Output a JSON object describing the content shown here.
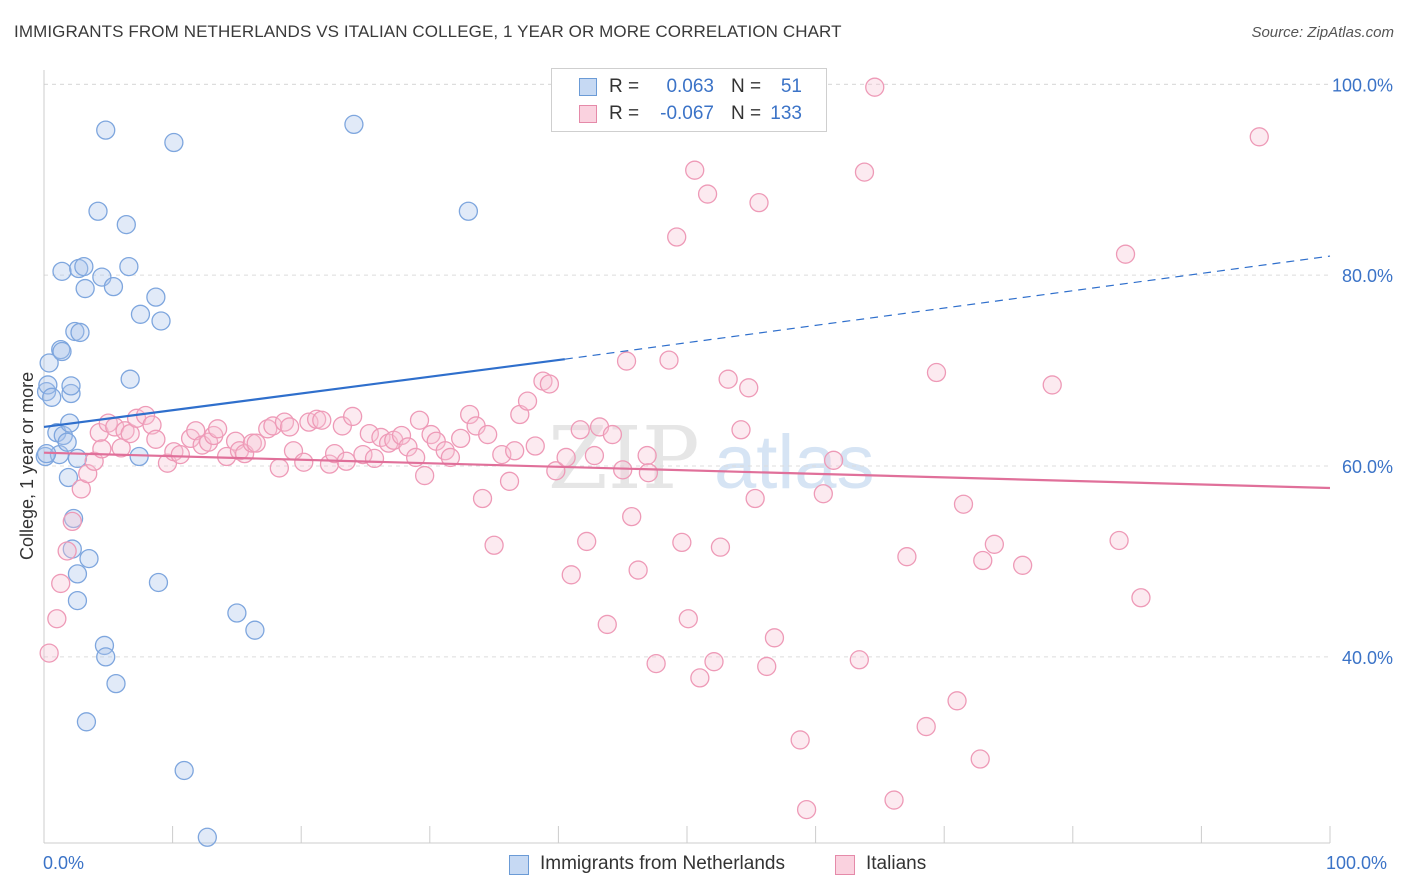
{
  "title": "IMMIGRANTS FROM NETHERLANDS VS ITALIAN COLLEGE, 1 YEAR OR MORE CORRELATION CHART",
  "source": "Source: ZipAtlas.com",
  "watermark": {
    "zip": "ZIP",
    "atlas": "atlas"
  },
  "legend_top": [
    {
      "r_label": "R =",
      "r_value": "0.063",
      "n_label": "N =",
      "n_value": "51",
      "color": "#a9c4ea",
      "border": "#6b9bd6"
    },
    {
      "r_label": "R =",
      "r_value": "-0.067",
      "n_label": "N =",
      "n_value": "133",
      "color": "#f7c3d4",
      "border": "#e58aa9"
    }
  ],
  "legend_bottom": [
    {
      "label": "Immigrants from Netherlands",
      "color": "#c6d9f3",
      "border": "#6b9bd6"
    },
    {
      "label": "Italians",
      "color": "#fad2df",
      "border": "#e58aa9"
    }
  ],
  "chart_data": {
    "type": "scatter",
    "title": "IMMIGRANTS FROM NETHERLANDS VS ITALIAN COLLEGE, 1 YEAR OR MORE CORRELATION CHART",
    "xlabel": "",
    "ylabel": "College, 1 year or more",
    "xlim": [
      0,
      100
    ],
    "ylim": [
      20.5,
      101.5
    ],
    "x_tick_labels": [
      "0.0%",
      "100.0%"
    ],
    "y_ticks": [
      40,
      60,
      80,
      100
    ],
    "y_tick_labels": [
      "40.0%",
      "60.0%",
      "80.0%",
      "100.0%"
    ],
    "grid": "horizontal dashed",
    "legend_position": "top-center",
    "series": [
      {
        "name": "Immigrants from Netherlands",
        "color": "#7ea6de",
        "fill": "rgba(169,196,234,0.35)",
        "trend_color": "#2f6fcc",
        "trend": {
          "x0": 0,
          "y0": 64.1,
          "x1": 40.5,
          "y1": 71.2,
          "dashed_to_x": 100,
          "dashed_to_y": 82.0
        },
        "points": [
          [
            0.1,
            61.0
          ],
          [
            0.2,
            67.8
          ],
          [
            0.3,
            68.5
          ],
          [
            0.4,
            70.8
          ],
          [
            0.6,
            67.2
          ],
          [
            1.0,
            63.5
          ],
          [
            1.2,
            61.2
          ],
          [
            1.3,
            72.2
          ],
          [
            1.4,
            72.0
          ],
          [
            1.5,
            63.2
          ],
          [
            1.4,
            80.4
          ],
          [
            1.8,
            62.5
          ],
          [
            1.9,
            58.8
          ],
          [
            2.0,
            64.5
          ],
          [
            2.1,
            67.6
          ],
          [
            2.1,
            68.4
          ],
          [
            2.2,
            51.3
          ],
          [
            2.3,
            54.5
          ],
          [
            2.6,
            60.8
          ],
          [
            2.4,
            74.1
          ],
          [
            2.8,
            74.0
          ],
          [
            2.7,
            80.7
          ],
          [
            2.6,
            48.7
          ],
          [
            2.6,
            45.9
          ],
          [
            3.1,
            80.9
          ],
          [
            3.2,
            78.6
          ],
          [
            3.3,
            33.2
          ],
          [
            3.5,
            50.3
          ],
          [
            4.2,
            86.7
          ],
          [
            4.5,
            79.8
          ],
          [
            4.7,
            41.2
          ],
          [
            4.8,
            40.0
          ],
          [
            4.8,
            95.2
          ],
          [
            5.4,
            78.8
          ],
          [
            5.6,
            37.2
          ],
          [
            6.4,
            85.3
          ],
          [
            6.6,
            80.9
          ],
          [
            6.7,
            69.1
          ],
          [
            7.4,
            61.0
          ],
          [
            7.5,
            75.9
          ],
          [
            8.7,
            77.7
          ],
          [
            8.9,
            47.8
          ],
          [
            9.1,
            75.2
          ],
          [
            10.1,
            93.9
          ],
          [
            10.9,
            28.1
          ],
          [
            12.7,
            21.1
          ],
          [
            15.0,
            44.6
          ],
          [
            16.4,
            42.8
          ],
          [
            24.1,
            95.8
          ],
          [
            33.0,
            86.7
          ],
          [
            0.2,
            61.3
          ]
        ]
      },
      {
        "name": "Italians",
        "color": "#ee9ab7",
        "fill": "rgba(247,195,212,0.35)",
        "trend_color": "#e0709a",
        "trend": {
          "x0": 0,
          "y0": 61.4,
          "x1": 100,
          "y1": 57.7
        },
        "points": [
          [
            0.4,
            40.4
          ],
          [
            1.0,
            44.0
          ],
          [
            1.3,
            47.7
          ],
          [
            1.8,
            51.1
          ],
          [
            2.2,
            54.2
          ],
          [
            2.9,
            57.6
          ],
          [
            3.4,
            59.2
          ],
          [
            3.9,
            60.5
          ],
          [
            4.3,
            63.5
          ],
          [
            4.5,
            61.8
          ],
          [
            5.0,
            64.5
          ],
          [
            5.5,
            64.1
          ],
          [
            6.0,
            61.9
          ],
          [
            6.3,
            63.7
          ],
          [
            6.7,
            63.4
          ],
          [
            7.2,
            65.0
          ],
          [
            7.9,
            65.3
          ],
          [
            8.4,
            64.3
          ],
          [
            8.7,
            62.8
          ],
          [
            9.6,
            60.3
          ],
          [
            10.1,
            61.5
          ],
          [
            10.6,
            61.2
          ],
          [
            11.4,
            62.9
          ],
          [
            11.8,
            63.7
          ],
          [
            12.3,
            62.2
          ],
          [
            12.8,
            62.5
          ],
          [
            13.2,
            63.2
          ],
          [
            13.5,
            63.9
          ],
          [
            14.2,
            61.0
          ],
          [
            14.9,
            62.6
          ],
          [
            15.2,
            61.6
          ],
          [
            15.6,
            61.3
          ],
          [
            16.2,
            62.4
          ],
          [
            16.5,
            62.4
          ],
          [
            17.4,
            63.9
          ],
          [
            17.8,
            64.2
          ],
          [
            18.3,
            59.8
          ],
          [
            18.7,
            64.6
          ],
          [
            19.1,
            64.1
          ],
          [
            19.4,
            61.6
          ],
          [
            20.2,
            60.4
          ],
          [
            20.6,
            64.6
          ],
          [
            21.2,
            64.9
          ],
          [
            21.6,
            64.8
          ],
          [
            22.2,
            60.2
          ],
          [
            22.6,
            61.3
          ],
          [
            23.2,
            64.2
          ],
          [
            23.5,
            60.5
          ],
          [
            24.0,
            65.2
          ],
          [
            24.8,
            61.2
          ],
          [
            25.3,
            63.4
          ],
          [
            25.7,
            60.8
          ],
          [
            26.2,
            63.0
          ],
          [
            26.8,
            62.4
          ],
          [
            27.2,
            62.7
          ],
          [
            27.8,
            63.2
          ],
          [
            28.3,
            62.0
          ],
          [
            28.9,
            60.9
          ],
          [
            29.2,
            64.8
          ],
          [
            29.6,
            59.0
          ],
          [
            30.1,
            63.3
          ],
          [
            30.5,
            62.6
          ],
          [
            31.2,
            61.6
          ],
          [
            31.6,
            60.9
          ],
          [
            32.4,
            62.9
          ],
          [
            33.1,
            65.4
          ],
          [
            33.6,
            64.2
          ],
          [
            34.1,
            56.6
          ],
          [
            34.5,
            63.3
          ],
          [
            35.0,
            51.7
          ],
          [
            35.6,
            61.2
          ],
          [
            36.2,
            58.4
          ],
          [
            36.6,
            61.6
          ],
          [
            37.0,
            65.4
          ],
          [
            37.6,
            66.8
          ],
          [
            38.2,
            62.1
          ],
          [
            38.8,
            68.9
          ],
          [
            39.3,
            68.6
          ],
          [
            39.8,
            59.5
          ],
          [
            40.6,
            60.9
          ],
          [
            41.0,
            48.6
          ],
          [
            41.7,
            63.8
          ],
          [
            42.2,
            52.1
          ],
          [
            42.8,
            61.1
          ],
          [
            43.2,
            64.1
          ],
          [
            43.8,
            43.4
          ],
          [
            44.2,
            63.3
          ],
          [
            45.0,
            59.6
          ],
          [
            45.3,
            71.0
          ],
          [
            45.7,
            54.7
          ],
          [
            46.2,
            49.1
          ],
          [
            46.9,
            61.1
          ],
          [
            47.0,
            59.3
          ],
          [
            47.6,
            39.3
          ],
          [
            48.6,
            71.1
          ],
          [
            49.2,
            84.0
          ],
          [
            49.6,
            52.0
          ],
          [
            50.1,
            44.0
          ],
          [
            50.6,
            91.0
          ],
          [
            51.0,
            37.8
          ],
          [
            51.6,
            88.5
          ],
          [
            52.1,
            39.5
          ],
          [
            52.6,
            51.5
          ],
          [
            53.2,
            69.1
          ],
          [
            53.6,
            97.4
          ],
          [
            54.2,
            63.8
          ],
          [
            54.8,
            68.2
          ],
          [
            55.3,
            56.6
          ],
          [
            55.6,
            87.6
          ],
          [
            56.2,
            39.0
          ],
          [
            56.8,
            42.0
          ],
          [
            58.8,
            31.3
          ],
          [
            59.3,
            24.0
          ],
          [
            60.6,
            57.1
          ],
          [
            61.4,
            60.6
          ],
          [
            63.4,
            39.7
          ],
          [
            63.8,
            90.8
          ],
          [
            64.6,
            99.7
          ],
          [
            66.1,
            25.0
          ],
          [
            67.1,
            50.5
          ],
          [
            68.6,
            32.7
          ],
          [
            69.4,
            69.8
          ],
          [
            71.0,
            35.4
          ],
          [
            72.8,
            29.3
          ],
          [
            73.0,
            50.1
          ],
          [
            73.9,
            51.8
          ],
          [
            76.1,
            49.6
          ],
          [
            78.4,
            68.5
          ],
          [
            83.6,
            52.2
          ],
          [
            84.1,
            82.2
          ],
          [
            85.3,
            46.2
          ],
          [
            94.5,
            94.5
          ],
          [
            71.5,
            56.0
          ]
        ]
      }
    ]
  }
}
